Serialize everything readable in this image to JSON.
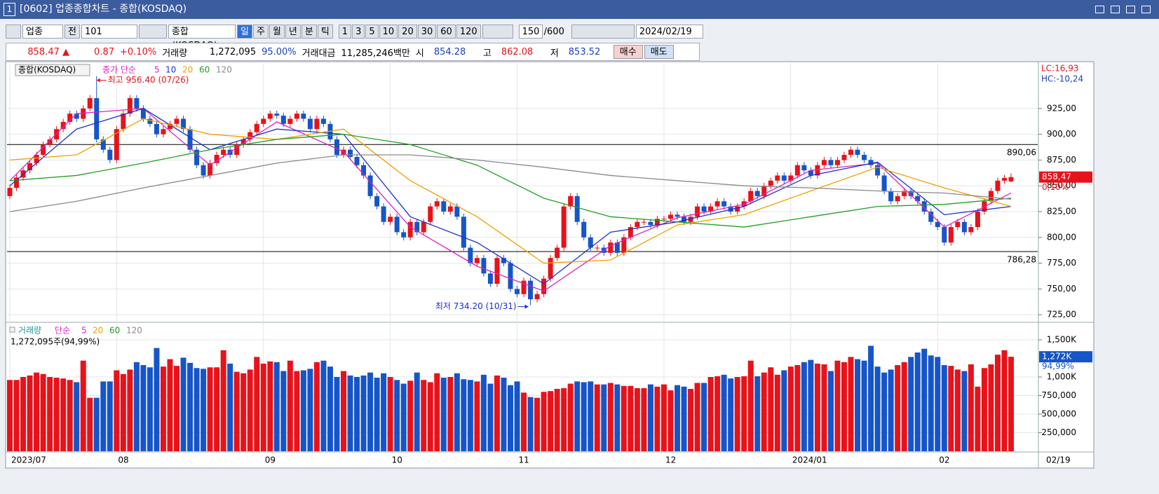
{
  "window": {
    "number": "1",
    "title": "[0602] 업종종합차트 - 종합(KOSDAQ)"
  },
  "toolbar": {
    "type": "업종",
    "all": "전",
    "code": "101",
    "name": "종합(KOSDAQ)",
    "periods": [
      "일",
      "주",
      "월",
      "년",
      "분",
      "틱"
    ],
    "intervals": [
      "1",
      "3",
      "5",
      "10",
      "20",
      "30",
      "60",
      "120"
    ],
    "count": "150",
    "max": "/600",
    "date": "2024/02/19"
  },
  "info": {
    "price": "858.47 ▲",
    "change": "0.87",
    "rate": "+0.10%",
    "volume_label": "거래량",
    "volume": "1,272,095",
    "volume_rate": "95.00%",
    "amount_label": "거래대금",
    "amount": "11,285,246백만",
    "open_label": "시",
    "open": "854.28",
    "high_label": "고",
    "high": "862.08",
    "low_label": "저",
    "low": "853.52",
    "buy": "매수",
    "sell": "매도"
  },
  "chart_data": [
    {
      "type": "candlestick",
      "name": "종합(KOSDAQ)",
      "legend_prefix": "종가 단순",
      "up_color": "#e8121a",
      "down_color": "#1655c8",
      "open": [
        840,
        848,
        858,
        865,
        872,
        880,
        890,
        895,
        905,
        912,
        920,
        915,
        925,
        935,
        895,
        885,
        875,
        905,
        920,
        935,
        925,
        915,
        910,
        900,
        905,
        910,
        915,
        905,
        885,
        870,
        860,
        872,
        880,
        885,
        880,
        890,
        895,
        902,
        910,
        915,
        920,
        918,
        910,
        915,
        920,
        915,
        905,
        915,
        910,
        895,
        880,
        885,
        878,
        870,
        860,
        840,
        830,
        815,
        820,
        805,
        800,
        815,
        805,
        815,
        830,
        835,
        825,
        830,
        820,
        790,
        775,
        780,
        765,
        755,
        780,
        775,
        750,
        745,
        758,
        740,
        745,
        760,
        780,
        790,
        830,
        840,
        815,
        800,
        790,
        790,
        785,
        795,
        785,
        800,
        810,
        815,
        815,
        812,
        818,
        818,
        822,
        820,
        815,
        820,
        830,
        825,
        830,
        835,
        830,
        825,
        830,
        835,
        845,
        840,
        850,
        855,
        860,
        855,
        860,
        870,
        865,
        860,
        870,
        875,
        870,
        875,
        880,
        885,
        880,
        875,
        870,
        860,
        845,
        835,
        840,
        845,
        840,
        835,
        825,
        815,
        810,
        795,
        810,
        815,
        805,
        810,
        825,
        835,
        845,
        855,
        854.28
      ],
      "high": [
        851,
        861,
        868,
        875,
        883,
        893,
        898,
        908,
        915,
        923,
        923,
        928,
        938,
        956.4,
        898,
        888,
        908,
        923,
        938,
        938,
        928,
        918,
        913,
        908,
        913,
        918,
        918,
        908,
        888,
        873,
        875,
        883,
        888,
        888,
        893,
        898,
        905,
        913,
        918,
        923,
        923,
        921,
        918,
        923,
        923,
        918,
        918,
        918,
        913,
        898,
        888,
        888,
        881,
        873,
        863,
        843,
        833,
        823,
        823,
        808,
        818,
        818,
        818,
        833,
        838,
        838,
        833,
        833,
        823,
        793,
        783,
        783,
        768,
        783,
        783,
        778,
        753,
        761,
        761,
        748,
        763,
        783,
        793,
        833,
        843,
        843,
        818,
        803,
        793,
        793,
        798,
        798,
        803,
        813,
        818,
        818,
        818,
        821,
        821,
        825,
        825,
        823,
        823,
        833,
        833,
        833,
        838,
        838,
        833,
        833,
        838,
        848,
        848,
        853,
        858,
        863,
        863,
        863,
        873,
        873,
        868,
        873,
        878,
        878,
        878,
        883,
        888,
        888,
        883,
        878,
        873,
        863,
        848,
        843,
        848,
        848,
        843,
        838,
        828,
        818,
        813,
        813,
        818,
        818,
        813,
        828,
        838,
        848,
        858,
        860.6,
        862.08
      ],
      "low": [
        837,
        845,
        855,
        862,
        869,
        877,
        887,
        892,
        902,
        909,
        912,
        912,
        922,
        892,
        882,
        872,
        872,
        902,
        917,
        922,
        912,
        907,
        897,
        897,
        902,
        907,
        902,
        882,
        867,
        857,
        857,
        869,
        877,
        877,
        877,
        887,
        892,
        899,
        907,
        912,
        915,
        907,
        907,
        912,
        912,
        902,
        902,
        907,
        892,
        877,
        877,
        875,
        867,
        857,
        837,
        827,
        812,
        812,
        802,
        797,
        797,
        802,
        802,
        812,
        827,
        822,
        822,
        817,
        787,
        772,
        772,
        762,
        752,
        752,
        772,
        747,
        742,
        742,
        734.2,
        737,
        742,
        757,
        777,
        787,
        827,
        812,
        797,
        787,
        787,
        782,
        782,
        782,
        782,
        797,
        807,
        812,
        809,
        809,
        815,
        815,
        817,
        812,
        812,
        817,
        822,
        822,
        827,
        827,
        822,
        822,
        827,
        832,
        837,
        837,
        847,
        852,
        852,
        852,
        857,
        862,
        857,
        857,
        867,
        867,
        867,
        872,
        877,
        877,
        872,
        867,
        857,
        842,
        832,
        832,
        837,
        837,
        832,
        822,
        812,
        807,
        792,
        792,
        807,
        802,
        802,
        807,
        822,
        832,
        842,
        852,
        853.52
      ],
      "close": [
        848,
        858,
        865,
        872,
        880,
        890,
        895,
        905,
        912,
        920,
        915,
        925,
        935,
        895,
        885,
        875,
        905,
        920,
        935,
        925,
        915,
        910,
        900,
        905,
        910,
        915,
        905,
        885,
        870,
        860,
        872,
        880,
        885,
        880,
        890,
        895,
        902,
        910,
        915,
        920,
        918,
        910,
        915,
        920,
        915,
        905,
        915,
        910,
        895,
        880,
        885,
        878,
        870,
        860,
        840,
        830,
        815,
        820,
        805,
        800,
        815,
        805,
        815,
        830,
        835,
        825,
        830,
        820,
        790,
        775,
        780,
        765,
        755,
        780,
        775,
        750,
        745,
        758,
        740,
        745,
        760,
        780,
        790,
        830,
        840,
        815,
        800,
        790,
        790,
        785,
        795,
        785,
        800,
        810,
        815,
        815,
        812,
        818,
        818,
        822,
        820,
        815,
        820,
        830,
        825,
        830,
        835,
        830,
        825,
        830,
        835,
        845,
        840,
        850,
        855,
        860,
        855,
        860,
        870,
        865,
        860,
        870,
        875,
        870,
        875,
        880,
        885,
        880,
        875,
        870,
        860,
        845,
        835,
        840,
        845,
        840,
        835,
        825,
        815,
        810,
        795,
        810,
        815,
        805,
        810,
        825,
        835,
        845,
        855,
        857.6,
        858.47
      ],
      "series": [
        {
          "name": "5",
          "color": "#e020c0",
          "x": [
            0,
            10,
            20,
            30,
            40,
            50,
            60,
            70,
            80,
            90,
            100,
            110,
            120,
            130,
            140,
            150
          ],
          "values": [
            855,
            920,
            925,
            870,
            912,
            883,
            810,
            772,
            748,
            792,
            819,
            832,
            865,
            872,
            810,
            843
          ]
        },
        {
          "name": "10",
          "color": "#2030d0",
          "x": [
            0,
            10,
            20,
            30,
            40,
            50,
            60,
            70,
            80,
            90,
            100,
            110,
            120,
            130,
            140,
            150
          ],
          "values": [
            850,
            905,
            925,
            885,
            905,
            900,
            820,
            795,
            755,
            805,
            815,
            830,
            860,
            873,
            822,
            830
          ]
        },
        {
          "name": "20",
          "color": "#f0a000",
          "x": [
            0,
            10,
            20,
            30,
            40,
            50,
            60,
            70,
            80,
            90,
            100,
            110,
            120,
            130,
            140,
            150
          ],
          "values": [
            875,
            880,
            915,
            900,
            895,
            905,
            855,
            820,
            775,
            778,
            812,
            822,
            845,
            868,
            848,
            830
          ]
        },
        {
          "name": "60",
          "color": "#20a020",
          "x": [
            0,
            10,
            20,
            30,
            40,
            50,
            60,
            70,
            80,
            90,
            100,
            110,
            120,
            130,
            140,
            150
          ],
          "values": [
            855,
            860,
            872,
            885,
            895,
            900,
            890,
            870,
            838,
            820,
            815,
            810,
            820,
            830,
            832,
            838
          ]
        },
        {
          "name": "120",
          "color": "#8a8a8a",
          "x": [
            0,
            10,
            20,
            30,
            40,
            50,
            60,
            70,
            80,
            90,
            100,
            110,
            120,
            130,
            140,
            150
          ],
          "values": [
            825,
            835,
            848,
            860,
            872,
            880,
            880,
            875,
            868,
            860,
            855,
            850,
            848,
            845,
            843,
            837
          ]
        }
      ],
      "ylim": [
        719,
        969
      ],
      "yticks": [
        {
          "value": 725,
          "label": "725,00"
        },
        {
          "value": 750,
          "label": "750,00"
        },
        {
          "value": 775,
          "label": "775,00"
        },
        {
          "value": 800,
          "label": "800,00"
        },
        {
          "value": 825,
          "label": "825,00"
        },
        {
          "value": 850,
          "label": "850,00"
        },
        {
          "value": 875,
          "label": "875,00"
        },
        {
          "value": 900,
          "label": "900,00"
        },
        {
          "value": 925,
          "label": "925,00"
        }
      ],
      "hlines": [
        {
          "value": 890.06,
          "label": "890,06"
        },
        {
          "value": 786.28,
          "label": "786,28"
        }
      ],
      "annotations": [
        {
          "text": "최고 956.40 (07/26)",
          "index": 13,
          "color": "#e8121a",
          "kind": "high"
        },
        {
          "text": "최저 734.20 (10/31)",
          "index": 78,
          "color": "#1a2fd0",
          "kind": "low"
        }
      ],
      "lc": "LC:16,93",
      "hc": "HC:-10,24",
      "last_label": "858,47",
      "last_rate": "0,10%",
      "xlabels": [
        {
          "index": 0,
          "label": "2023/07"
        },
        {
          "index": 16,
          "label": "08"
        },
        {
          "index": 38,
          "label": "09"
        },
        {
          "index": 57,
          "label": "10"
        },
        {
          "index": 76,
          "label": "11"
        },
        {
          "index": 98,
          "label": "12"
        },
        {
          "index": 117,
          "label": "2024/01"
        },
        {
          "index": 139,
          "label": "02"
        }
      ],
      "x_end": "02/19"
    },
    {
      "type": "bar",
      "legend_title": "거래량",
      "legend_prefix": "단순",
      "current_text": "1,272,095주(94,99%)",
      "last_label": "1,272K",
      "last_rate": "94,99%",
      "ma_names": [
        {
          "name": "5",
          "color": "#e020c0"
        },
        {
          "name": "20",
          "color": "#f0a000"
        },
        {
          "name": "60",
          "color": "#20a020"
        },
        {
          "name": "120",
          "color": "#8a8a8a"
        }
      ],
      "values": [
        960000,
        960000,
        1000000,
        1020000,
        1060000,
        1040000,
        1000000,
        990000,
        980000,
        960000,
        930000,
        1220000,
        720000,
        720000,
        940000,
        940000,
        1090000,
        1040000,
        1100000,
        1200000,
        1160000,
        1130000,
        1390000,
        1140000,
        1240000,
        1150000,
        1260000,
        1190000,
        1120000,
        1110000,
        1130000,
        1130000,
        1360000,
        1180000,
        1070000,
        1050000,
        1100000,
        1270000,
        1180000,
        1210000,
        1200000,
        1080000,
        1220000,
        1080000,
        1090000,
        1110000,
        1200000,
        1220000,
        1140000,
        1000000,
        1080000,
        1020000,
        1000000,
        1020000,
        1060000,
        990000,
        1050000,
        1000000,
        960000,
        910000,
        950000,
        1060000,
        960000,
        930000,
        1050000,
        990000,
        1000000,
        1050000,
        970000,
        960000,
        940000,
        1030000,
        910000,
        1020000,
        990000,
        890000,
        940000,
        790000,
        730000,
        720000,
        800000,
        810000,
        840000,
        850000,
        910000,
        940000,
        930000,
        940000,
        900000,
        900000,
        920000,
        900000,
        880000,
        880000,
        850000,
        850000,
        900000,
        870000,
        900000,
        820000,
        890000,
        870000,
        840000,
        920000,
        920000,
        1000000,
        1010000,
        1030000,
        980000,
        1000000,
        1010000,
        1220000,
        1010000,
        1060000,
        1130000,
        1030000,
        1090000,
        1140000,
        1160000,
        1200000,
        1230000,
        1180000,
        1170000,
        1080000,
        1220000,
        1200000,
        1270000,
        1240000,
        1220000,
        1420000,
        1140000,
        1060000,
        1100000,
        1160000,
        1200000,
        1270000,
        1330000,
        1380000,
        1290000,
        1270000,
        1160000,
        1150000,
        1100000,
        1080000,
        1170000,
        870000,
        1120000,
        1170000,
        1300000,
        1360000,
        1272095
      ],
      "ylim": [
        0,
        1717000
      ],
      "yticks": [
        {
          "value": 250000,
          "label": "250,000"
        },
        {
          "value": 500000,
          "label": "500,000"
        },
        {
          "value": 750000,
          "label": "750,000"
        },
        {
          "value": 1000000,
          "label": "1,000K"
        },
        {
          "value": 1500000,
          "label": "1,500K"
        }
      ]
    }
  ]
}
